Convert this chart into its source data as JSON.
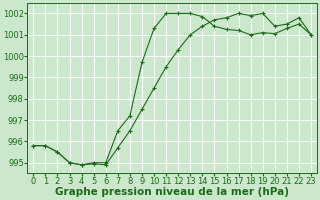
{
  "bg_color": "#cce8cc",
  "grid_color": "#ffffff",
  "line_color": "#1a6b1a",
  "marker": "+",
  "xlabel": "Graphe pression niveau de la mer (hPa)",
  "xlabel_fontsize": 7.5,
  "tick_fontsize": 6,
  "ylim": [
    994.5,
    1002.5
  ],
  "xlim": [
    -0.5,
    23.5
  ],
  "yticks": [
    995,
    996,
    997,
    998,
    999,
    1000,
    1001,
    1002
  ],
  "xticks": [
    0,
    1,
    2,
    3,
    4,
    5,
    6,
    7,
    8,
    9,
    10,
    11,
    12,
    13,
    14,
    15,
    16,
    17,
    18,
    19,
    20,
    21,
    22,
    23
  ],
  "series1_x": [
    0,
    1,
    2,
    3,
    4,
    5,
    6,
    7,
    8,
    9,
    10,
    11,
    12,
    13,
    14,
    15,
    16,
    17,
    18,
    19,
    20,
    21,
    22,
    23
  ],
  "series1_y": [
    995.8,
    995.8,
    995.5,
    995.0,
    994.9,
    994.95,
    994.9,
    995.7,
    996.5,
    997.5,
    998.5,
    999.5,
    1000.3,
    1001.0,
    1001.4,
    1001.7,
    1001.8,
    1002.0,
    1001.9,
    1002.0,
    1001.4,
    1001.5,
    1001.8,
    1001.0
  ],
  "series2_x": [
    0,
    1,
    2,
    3,
    4,
    5,
    6,
    7,
    8,
    9,
    10,
    11,
    12,
    13,
    14,
    15,
    16,
    17,
    18,
    19,
    20,
    21,
    22,
    23
  ],
  "series2_y": [
    995.8,
    995.8,
    995.5,
    995.0,
    994.9,
    995.0,
    995.0,
    996.5,
    997.2,
    999.7,
    1001.3,
    1002.0,
    1002.0,
    1002.0,
    1001.85,
    1001.4,
    1001.25,
    1001.2,
    1001.0,
    1001.1,
    1001.05,
    1001.3,
    1001.5,
    1001.0
  ]
}
